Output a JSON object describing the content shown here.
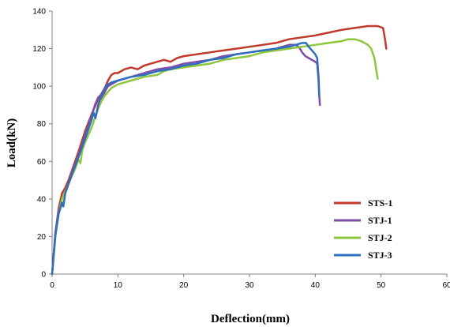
{
  "chart_data": {
    "type": "line",
    "xlabel": "Deflection(mm)",
    "ylabel": "Load(kN)",
    "xlim": [
      0,
      60
    ],
    "ylim": [
      0,
      140
    ],
    "x_ticks": [
      0,
      10,
      20,
      30,
      40,
      50,
      60
    ],
    "y_ticks": [
      0,
      20,
      40,
      60,
      80,
      100,
      120,
      140
    ],
    "grid": false,
    "legend_position": "lower-right",
    "series": [
      {
        "name": "STS-1",
        "color": "#c0392b",
        "points": [
          [
            0,
            0
          ],
          [
            0.5,
            22
          ],
          [
            1,
            35
          ],
          [
            1.5,
            43
          ],
          [
            2,
            46
          ],
          [
            2.5,
            50
          ],
          [
            3,
            55
          ],
          [
            4,
            65
          ],
          [
            5,
            76
          ],
          [
            6,
            85
          ],
          [
            7,
            93
          ],
          [
            8,
            99
          ],
          [
            8.5,
            103
          ],
          [
            9,
            106
          ],
          [
            9.5,
            107
          ],
          [
            10,
            107
          ],
          [
            11,
            109
          ],
          [
            12,
            110
          ],
          [
            13,
            109
          ],
          [
            14,
            111
          ],
          [
            15,
            112
          ],
          [
            16,
            113
          ],
          [
            17,
            114
          ],
          [
            18,
            113
          ],
          [
            19,
            115
          ],
          [
            20,
            116
          ],
          [
            22,
            117
          ],
          [
            24,
            118
          ],
          [
            26,
            119
          ],
          [
            28,
            120
          ],
          [
            30,
            121
          ],
          [
            32,
            122
          ],
          [
            34,
            123
          ],
          [
            36,
            125
          ],
          [
            38,
            126
          ],
          [
            40,
            127
          ],
          [
            42,
            128.5
          ],
          [
            44,
            130
          ],
          [
            46,
            131
          ],
          [
            48,
            132
          ],
          [
            49.5,
            132
          ],
          [
            50.3,
            131
          ],
          [
            50.6,
            125
          ],
          [
            50.8,
            120
          ]
        ]
      },
      {
        "name": "STJ-1",
        "color": "#7d4fa8",
        "points": [
          [
            0,
            0
          ],
          [
            0.5,
            22
          ],
          [
            1,
            33
          ],
          [
            1.5,
            40
          ],
          [
            2,
            44
          ],
          [
            2.5,
            48
          ],
          [
            3,
            54
          ],
          [
            4,
            63
          ],
          [
            5,
            74
          ],
          [
            5.5,
            79
          ],
          [
            6,
            84
          ],
          [
            6.5,
            90
          ],
          [
            7,
            94
          ],
          [
            7.3,
            95
          ],
          [
            7.6,
            93
          ],
          [
            8,
            97
          ],
          [
            8.5,
            100
          ],
          [
            9,
            101
          ],
          [
            10,
            103
          ],
          [
            12,
            105
          ],
          [
            14,
            107
          ],
          [
            16,
            109
          ],
          [
            18,
            110
          ],
          [
            20,
            112
          ],
          [
            22,
            113
          ],
          [
            24,
            114
          ],
          [
            26,
            116
          ],
          [
            28,
            117
          ],
          [
            30,
            118
          ],
          [
            32,
            119
          ],
          [
            34,
            120
          ],
          [
            35,
            121
          ],
          [
            36,
            122
          ],
          [
            37,
            122
          ],
          [
            37.5,
            121
          ],
          [
            38,
            118
          ],
          [
            38.5,
            116
          ],
          [
            39,
            115
          ],
          [
            39.5,
            114
          ],
          [
            40,
            113
          ],
          [
            40.3,
            112
          ],
          [
            40.5,
            103
          ],
          [
            40.6,
            96
          ],
          [
            40.7,
            90
          ]
        ]
      },
      {
        "name": "STJ-2",
        "color": "#8dc63f",
        "points": [
          [
            0,
            0
          ],
          [
            0.5,
            20
          ],
          [
            1,
            32
          ],
          [
            1.5,
            40
          ],
          [
            2,
            44
          ],
          [
            2.5,
            48
          ],
          [
            3,
            52
          ],
          [
            3.5,
            56
          ],
          [
            4,
            61
          ],
          [
            4.3,
            59
          ],
          [
            4.6,
            66
          ],
          [
            5,
            70
          ],
          [
            5.5,
            74
          ],
          [
            6,
            78
          ],
          [
            6.5,
            83
          ],
          [
            7,
            88
          ],
          [
            7.5,
            92
          ],
          [
            8,
            95
          ],
          [
            8.5,
            97
          ],
          [
            9,
            99
          ],
          [
            10,
            101
          ],
          [
            12,
            103
          ],
          [
            14,
            105
          ],
          [
            16,
            106
          ],
          [
            17,
            108
          ],
          [
            18,
            109
          ],
          [
            20,
            110
          ],
          [
            22,
            111
          ],
          [
            24,
            112
          ],
          [
            26,
            114
          ],
          [
            28,
            115
          ],
          [
            30,
            116
          ],
          [
            32,
            118
          ],
          [
            34,
            119
          ],
          [
            36,
            120
          ],
          [
            38,
            121
          ],
          [
            40,
            122
          ],
          [
            42,
            123
          ],
          [
            44,
            124
          ],
          [
            45,
            125
          ],
          [
            46,
            125
          ],
          [
            47,
            124
          ],
          [
            48,
            122
          ],
          [
            48.5,
            120
          ],
          [
            49,
            115
          ],
          [
            49.3,
            108
          ],
          [
            49.5,
            104
          ]
        ]
      },
      {
        "name": "STJ-3",
        "color": "#2e6fbd",
        "points": [
          [
            0,
            0
          ],
          [
            0.5,
            21
          ],
          [
            1,
            32
          ],
          [
            1.5,
            38
          ],
          [
            1.7,
            36
          ],
          [
            2,
            43
          ],
          [
            2.5,
            48
          ],
          [
            3,
            53
          ],
          [
            4,
            62
          ],
          [
            5,
            72
          ],
          [
            6,
            82
          ],
          [
            6.3,
            86
          ],
          [
            6.6,
            83
          ],
          [
            7,
            90
          ],
          [
            7.5,
            95
          ],
          [
            8,
            99
          ],
          [
            8.5,
            101
          ],
          [
            9,
            102
          ],
          [
            10,
            103
          ],
          [
            11,
            104
          ],
          [
            12,
            105
          ],
          [
            14,
            106
          ],
          [
            16,
            108
          ],
          [
            18,
            109
          ],
          [
            20,
            111
          ],
          [
            22,
            112
          ],
          [
            24,
            114
          ],
          [
            26,
            115
          ],
          [
            28,
            117
          ],
          [
            30,
            118
          ],
          [
            32,
            119
          ],
          [
            34,
            120
          ],
          [
            36,
            121
          ],
          [
            37,
            122
          ],
          [
            38,
            123
          ],
          [
            38.6,
            123
          ],
          [
            39,
            121
          ],
          [
            39.5,
            119
          ],
          [
            40,
            117
          ],
          [
            40.3,
            115
          ],
          [
            40.5,
            105
          ],
          [
            40.6,
            95
          ]
        ]
      }
    ]
  }
}
